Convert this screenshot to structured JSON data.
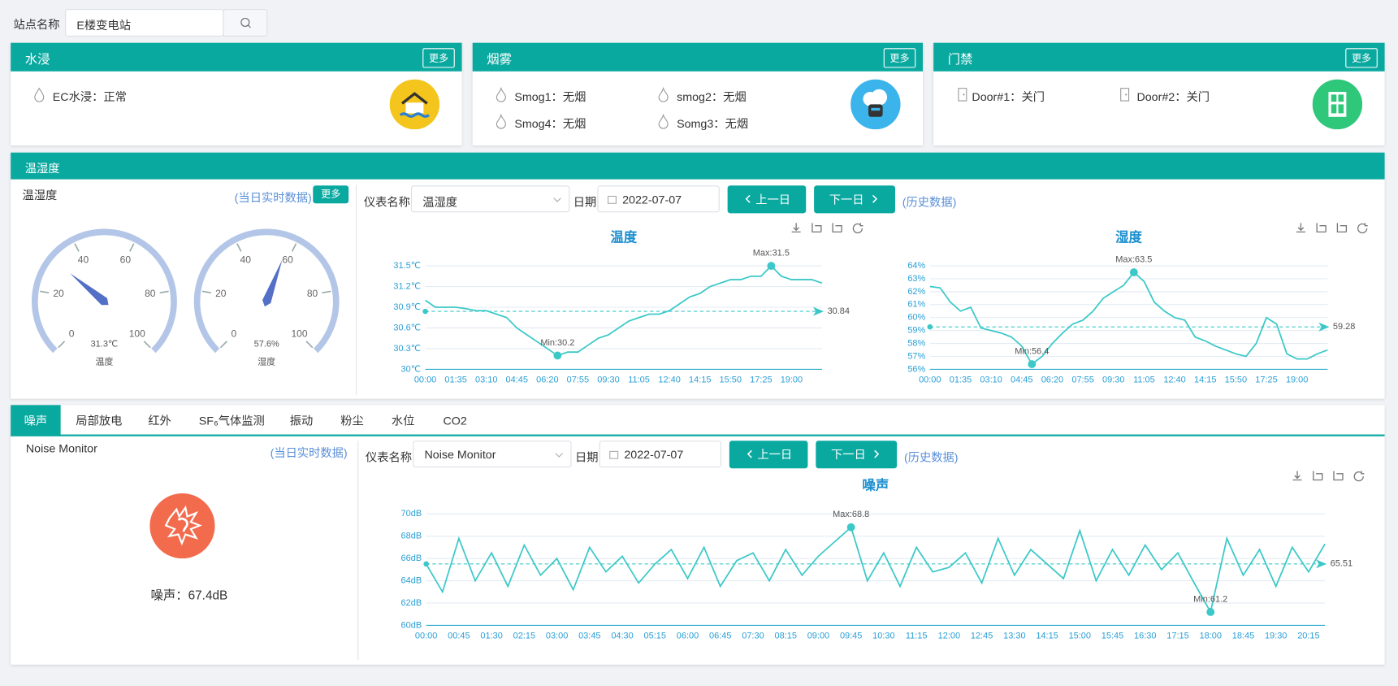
{
  "search": {
    "label": "站点名称",
    "value": "E楼变电站"
  },
  "cards": [
    {
      "title": "水浸",
      "more": "更多",
      "items": [
        "EC水浸：正常"
      ]
    },
    {
      "title": "烟雾",
      "more": "更多",
      "items": [
        "Smog1：无烟",
        "smog2：无烟",
        "Smog4：无烟",
        "Somg3：无烟"
      ]
    },
    {
      "title": "门禁",
      "more": "更多",
      "items": [
        "Door#1：关门",
        "Door#2：关门"
      ]
    }
  ],
  "temp_humidity": {
    "title": "温湿度",
    "subtitle": "温湿度",
    "realtime_link": "(当日实时数据)",
    "more": "更多",
    "meter_label": "仪表名称",
    "meter": "温湿度",
    "date_label": "日期",
    "date": "2022-07-07",
    "prev": "上一日",
    "next": "下一日",
    "history_link": "(历史数据)"
  },
  "tabs": [
    "噪声",
    "局部放电",
    "红外",
    "SF₆气体监测",
    "振动",
    "粉尘",
    "水位",
    "CO2"
  ],
  "noise": {
    "name": "Noise Monitor",
    "realtime_link": "(当日实时数据)",
    "reading": "噪声：67.4dB",
    "meter_label": "仪表名称",
    "meter": "Noise Monitor",
    "date_label": "日期",
    "date": "2022-07-07",
    "prev": "上一日",
    "next": "下一日",
    "history_link": "(历史数据)"
  },
  "chart_data": [
    {
      "type": "gauge",
      "name": "温度",
      "values": [
        31.3
      ],
      "value_labels": [
        "31.3℃"
      ],
      "ylim": [
        0,
        100
      ],
      "yticks": [
        0,
        20,
        40,
        60,
        80,
        100
      ],
      "color": "#5470c6"
    },
    {
      "type": "gauge",
      "name": "湿度",
      "values": [
        57.6
      ],
      "value_labels": [
        "57.6%"
      ],
      "ylim": [
        0,
        100
      ],
      "yticks": [
        0,
        20,
        40,
        60,
        80,
        100
      ],
      "color": "#5470c6"
    },
    {
      "type": "line",
      "title": "温度",
      "color": "#3cc8c8",
      "categories": [
        "00:00",
        null,
        null,
        "01:35",
        null,
        null,
        "03:10",
        null,
        null,
        "04:45",
        null,
        null,
        "06:20",
        null,
        null,
        "07:55",
        null,
        null,
        "09:30",
        null,
        null,
        "11:05",
        null,
        null,
        "12:40",
        null,
        null,
        "14:15",
        null,
        null,
        "15:50",
        null,
        null,
        "17:25",
        null,
        null,
        "19:00",
        null,
        null,
        null
      ],
      "values": [
        31.0,
        30.9,
        30.9,
        30.9,
        30.88,
        30.85,
        30.85,
        30.8,
        30.75,
        30.6,
        30.5,
        30.4,
        30.3,
        30.2,
        30.25,
        30.25,
        30.35,
        30.45,
        30.5,
        30.6,
        30.7,
        30.75,
        30.8,
        30.8,
        30.85,
        30.95,
        31.05,
        31.1,
        31.2,
        31.25,
        31.3,
        31.3,
        31.35,
        31.35,
        31.5,
        31.35,
        31.3,
        31.3,
        31.3,
        31.25
      ],
      "ylim": [
        30,
        31.5
      ],
      "yticks": [
        {
          "value": 30,
          "label": "30℃"
        },
        {
          "value": 30.3,
          "label": "30.3℃"
        },
        {
          "value": 30.6,
          "label": "30.6℃"
        },
        {
          "value": 30.9,
          "label": "30.9℃"
        },
        {
          "value": 31.2,
          "label": "31.2℃"
        },
        {
          "value": 31.5,
          "label": "31.5℃"
        }
      ],
      "average": 30.84,
      "annotations": [
        "Max:31.5",
        "Min:30.2"
      ],
      "grid": true
    },
    {
      "type": "line",
      "title": "湿度",
      "color": "#3cc8c8",
      "categories": [
        "00:00",
        null,
        null,
        "01:35",
        null,
        null,
        "03:10",
        null,
        null,
        "04:45",
        null,
        null,
        "06:20",
        null,
        null,
        "07:55",
        null,
        null,
        "09:30",
        null,
        null,
        "11:05",
        null,
        null,
        "12:40",
        null,
        null,
        "14:15",
        null,
        null,
        "15:50",
        null,
        null,
        "17:25",
        null,
        null,
        "19:00",
        null,
        null,
        null
      ],
      "values": [
        62.4,
        62.3,
        61.2,
        60.5,
        60.8,
        59.2,
        59.0,
        58.8,
        58.5,
        57.8,
        56.4,
        57.0,
        58.0,
        58.8,
        59.5,
        59.8,
        60.5,
        61.5,
        62.0,
        62.5,
        63.5,
        62.8,
        61.2,
        60.5,
        60.0,
        59.8,
        58.5,
        58.2,
        57.8,
        57.5,
        57.2,
        57.0,
        58.0,
        60.0,
        59.5,
        57.2,
        56.8,
        56.8,
        57.2,
        57.5
      ],
      "ylim": [
        56,
        64
      ],
      "yticks": [
        {
          "value": 56,
          "label": "56%"
        },
        {
          "value": 57,
          "label": "57%"
        },
        {
          "value": 58,
          "label": "58%"
        },
        {
          "value": 59,
          "label": "59%"
        },
        {
          "value": 60,
          "label": "60%"
        },
        {
          "value": 61,
          "label": "61%"
        },
        {
          "value": 62,
          "label": "62%"
        },
        {
          "value": 63,
          "label": "63%"
        },
        {
          "value": 64,
          "label": "64%"
        }
      ],
      "average": 59.28,
      "annotations": [
        "Max:63.5",
        "Min:56.4"
      ],
      "grid": true
    },
    {
      "type": "line",
      "title": "噪声",
      "color": "#3cc8c8",
      "categories": [
        "00:00",
        null,
        "00:45",
        null,
        "01:30",
        null,
        "02:15",
        null,
        "03:00",
        null,
        "03:45",
        null,
        "04:30",
        null,
        "05:15",
        null,
        "06:00",
        null,
        "06:45",
        null,
        "07:30",
        null,
        "08:15",
        null,
        "09:00",
        null,
        "09:45",
        null,
        "10:30",
        null,
        "11:15",
        null,
        "12:00",
        null,
        "12:45",
        null,
        "13:30",
        null,
        "14:15",
        null,
        "15:00",
        null,
        "15:45",
        null,
        "16:30",
        null,
        "17:15",
        null,
        "18:00",
        null,
        "18:45",
        null,
        "19:30",
        null,
        "20:15",
        null
      ],
      "values": [
        65.5,
        63.0,
        67.8,
        64.0,
        66.5,
        63.5,
        67.2,
        64.5,
        66.0,
        63.2,
        67.0,
        64.8,
        66.2,
        63.8,
        65.5,
        66.8,
        64.2,
        67.0,
        63.5,
        65.8,
        66.5,
        64.0,
        66.8,
        64.5,
        66.2,
        67.5,
        68.8,
        64.0,
        66.5,
        63.5,
        67.0,
        64.8,
        65.2,
        66.5,
        63.8,
        67.8,
        64.5,
        66.8,
        65.5,
        64.2,
        68.5,
        64.0,
        66.8,
        64.5,
        67.2,
        65.0,
        66.5,
        63.8,
        61.2,
        67.8,
        64.5,
        66.8,
        63.5,
        67.0,
        64.8,
        67.3
      ],
      "ylim": [
        60,
        70
      ],
      "yticks": [
        {
          "value": 60,
          "label": "60dB"
        },
        {
          "value": 62,
          "label": "62dB"
        },
        {
          "value": 64,
          "label": "64dB"
        },
        {
          "value": 66,
          "label": "66dB"
        },
        {
          "value": 68,
          "label": "68dB"
        },
        {
          "value": 70,
          "label": "70dB"
        }
      ],
      "average": 65.51,
      "annotations": [
        "Max:68.8",
        "Min:61.2"
      ],
      "grid": true
    }
  ]
}
